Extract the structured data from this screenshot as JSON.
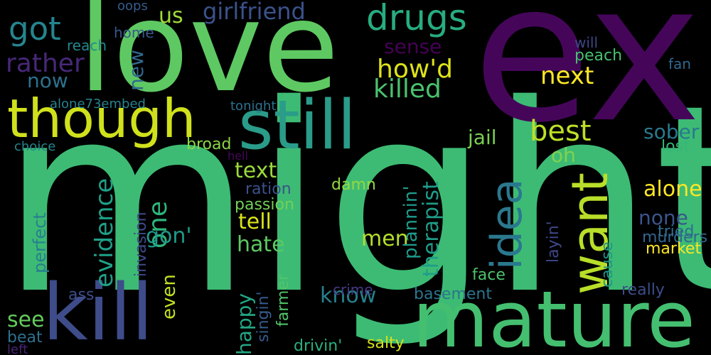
{
  "background": "#000000",
  "words": [
    {
      "text": "might",
      "color": "#3dbb74"
    },
    {
      "text": "ex",
      "color": "#45065a"
    },
    {
      "text": "love",
      "color": "#5ec962"
    },
    {
      "text": "kill",
      "color": "#3e4c8a"
    },
    {
      "text": "mature",
      "color": "#44bf70"
    },
    {
      "text": "still",
      "color": "#2a9c89"
    },
    {
      "text": "though",
      "color": "#d0e11c"
    },
    {
      "text": "drugs",
      "color": "#27ad81"
    },
    {
      "text": "want",
      "color": "#b8de29"
    },
    {
      "text": "idea",
      "color": "#2a788e"
    },
    {
      "text": "best",
      "color": "#bddf26"
    },
    {
      "text": "got",
      "color": "#25858e"
    },
    {
      "text": "girlfriend",
      "color": "#3b528b"
    },
    {
      "text": "rather",
      "color": "#482878"
    },
    {
      "text": "how'd",
      "color": "#dde318"
    },
    {
      "text": "killed",
      "color": "#4ac16d"
    },
    {
      "text": "next",
      "color": "#fde725"
    },
    {
      "text": "us",
      "color": "#a0da39"
    },
    {
      "text": "sense",
      "color": "#440154"
    },
    {
      "text": "new",
      "color": "#31688e"
    },
    {
      "text": "now",
      "color": "#2c718e"
    },
    {
      "text": "one",
      "color": "#2fb47c"
    },
    {
      "text": "evidence",
      "color": "#1fa088"
    },
    {
      "text": "gon'",
      "color": "#1f9a8a"
    },
    {
      "text": "text",
      "color": "#9bd93c"
    },
    {
      "text": "tell",
      "color": "#dae319"
    },
    {
      "text": "hate",
      "color": "#5cc863"
    },
    {
      "text": "jail",
      "color": "#7ad151"
    },
    {
      "text": "oh",
      "color": "#7fd34e"
    },
    {
      "text": "sober",
      "color": "#29798e"
    },
    {
      "text": "lost",
      "color": "#35b779"
    },
    {
      "text": "alone",
      "color": "#fde725"
    },
    {
      "text": "none",
      "color": "#3a548c"
    },
    {
      "text": "murders",
      "color": "#32658e"
    },
    {
      "text": "tried",
      "color": "#2e6d8e"
    },
    {
      "text": "market",
      "color": "#fde725"
    },
    {
      "text": "men",
      "color": "#b5de2b"
    },
    {
      "text": "therapist",
      "color": "#1e9d89"
    },
    {
      "text": "plannin'",
      "color": "#1e9b8a"
    },
    {
      "text": "know",
      "color": "#26818e"
    },
    {
      "text": "happy",
      "color": "#22a785"
    },
    {
      "text": "damn",
      "color": "#95d840"
    },
    {
      "text": "passion",
      "color": "#73d056"
    },
    {
      "text": "ration",
      "color": "#3b528b"
    },
    {
      "text": "broad",
      "color": "#8bd646"
    },
    {
      "text": "tonight",
      "color": "#2d718e"
    },
    {
      "text": "hell",
      "color": "#46075a"
    },
    {
      "text": "alone73embed",
      "color": "#26828e"
    },
    {
      "text": "choice",
      "color": "#24878e"
    },
    {
      "text": "reach",
      "color": "#23898e"
    },
    {
      "text": "home",
      "color": "#38598c"
    },
    {
      "text": "oops",
      "color": "#365c8d"
    },
    {
      "text": "will",
      "color": "#404688"
    },
    {
      "text": "peach",
      "color": "#46c06f"
    },
    {
      "text": "fan",
      "color": "#31678e"
    },
    {
      "text": "see",
      "color": "#65cb5e"
    },
    {
      "text": "beat",
      "color": "#2d718e"
    },
    {
      "text": "left",
      "color": "#482475"
    },
    {
      "text": "perfect",
      "color": "#277f8e"
    },
    {
      "text": "ass",
      "color": "#3c4f8a"
    },
    {
      "text": "even",
      "color": "#c2df23"
    },
    {
      "text": "invasion",
      "color": "#3e4989"
    },
    {
      "text": "singin'",
      "color": "#375a8c"
    },
    {
      "text": "farmer",
      "color": "#50c46a"
    },
    {
      "text": "drivin'",
      "color": "#2ab07f"
    },
    {
      "text": "salty",
      "color": "#d5e21a"
    },
    {
      "text": "crime",
      "color": "#443983"
    },
    {
      "text": "face",
      "color": "#4ec36b"
    },
    {
      "text": "basement",
      "color": "#2b758e"
    },
    {
      "text": "layin'",
      "color": "#3f4788"
    },
    {
      "text": "cause",
      "color": "#1f968b"
    },
    {
      "text": "really",
      "color": "#3d4d8a"
    }
  ]
}
